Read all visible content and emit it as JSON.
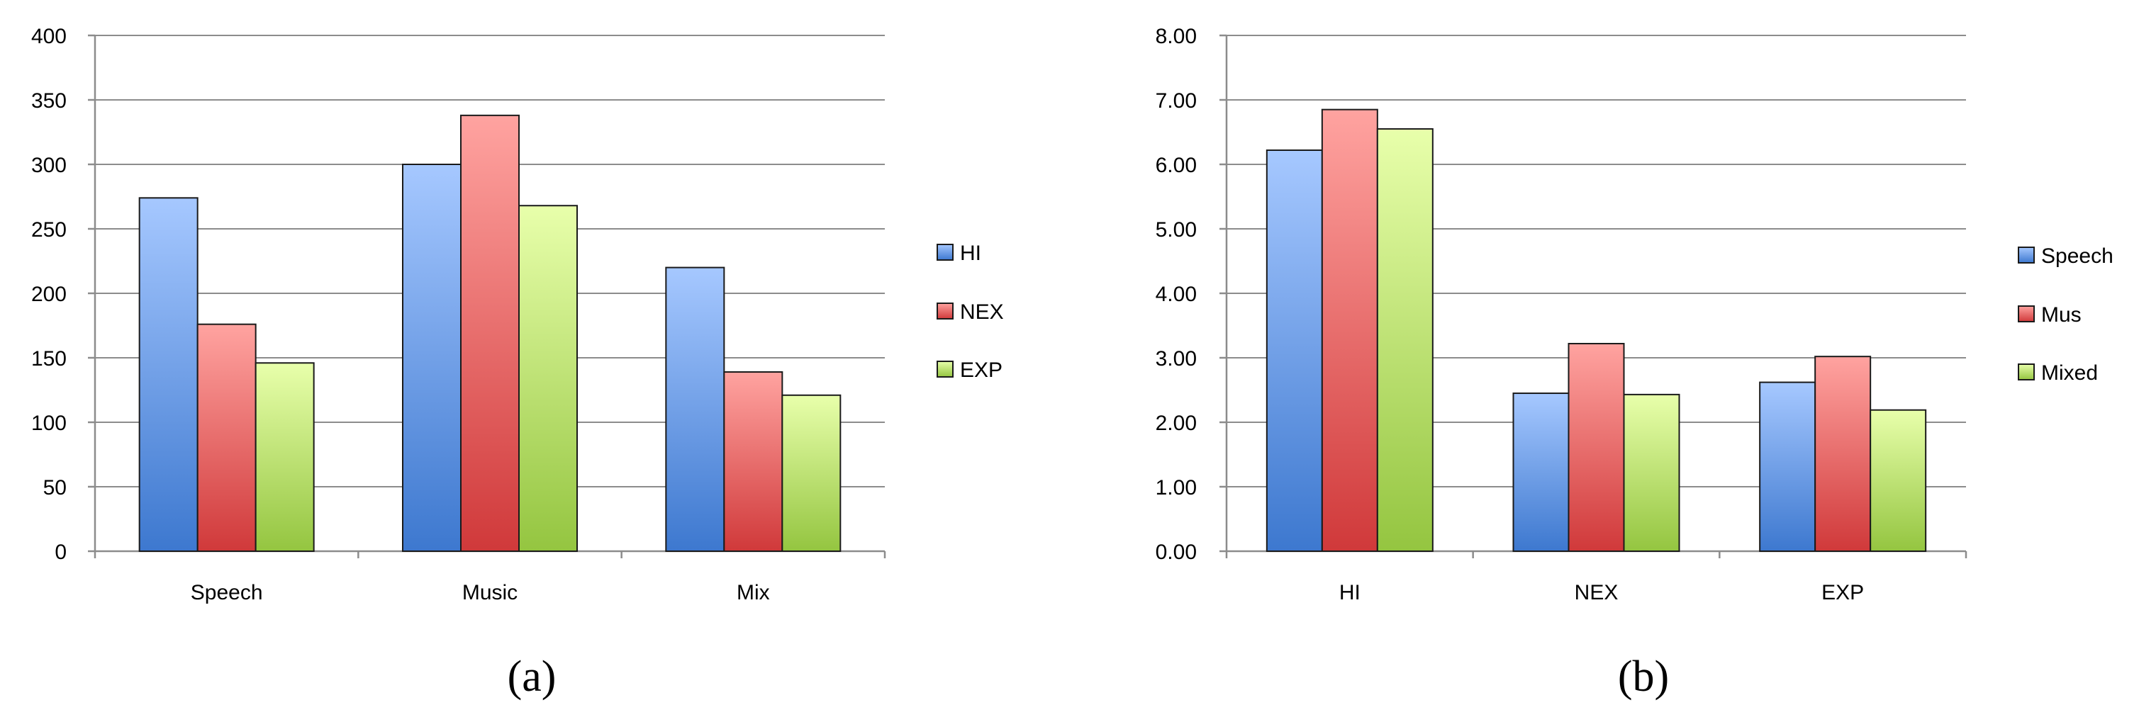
{
  "chart_data": [
    {
      "type": "bar",
      "panel_label": "(a)",
      "categories": [
        "Speech",
        "Music",
        "Mix"
      ],
      "series": [
        {
          "name": "HI",
          "color": "#4f86d9",
          "values": [
            274,
            300,
            220
          ]
        },
        {
          "name": "NEX",
          "color": "#e05252",
          "values": [
            176,
            338,
            139
          ]
        },
        {
          "name": "EXP",
          "color": "#a8d44f",
          "values": [
            146,
            268,
            121
          ]
        }
      ],
      "ylim": [
        0,
        400
      ],
      "yticks": [
        "0",
        "50",
        "100",
        "150",
        "200",
        "250",
        "300",
        "350",
        "400"
      ],
      "ytick_values": [
        0,
        50,
        100,
        150,
        200,
        250,
        300,
        350,
        400
      ],
      "grid": true,
      "legend": "right"
    },
    {
      "type": "bar",
      "panel_label": "(b)",
      "categories": [
        "HI",
        "NEX",
        "EXP"
      ],
      "series": [
        {
          "name": "Speech",
          "color": "#4f86d9",
          "values": [
            6.22,
            2.45,
            2.62
          ]
        },
        {
          "name": "Mus",
          "color": "#e05252",
          "values": [
            6.85,
            3.22,
            3.02
          ]
        },
        {
          "name": "Mixed",
          "color": "#a8d44f",
          "values": [
            6.55,
            2.43,
            2.19
          ]
        }
      ],
      "ylim": [
        0,
        8
      ],
      "yticks": [
        "0.00",
        "1.00",
        "2.00",
        "3.00",
        "4.00",
        "5.00",
        "6.00",
        "7.00",
        "8.00"
      ],
      "ytick_values": [
        0,
        1,
        2,
        3,
        4,
        5,
        6,
        7,
        8
      ],
      "grid": true,
      "legend": "right"
    }
  ]
}
